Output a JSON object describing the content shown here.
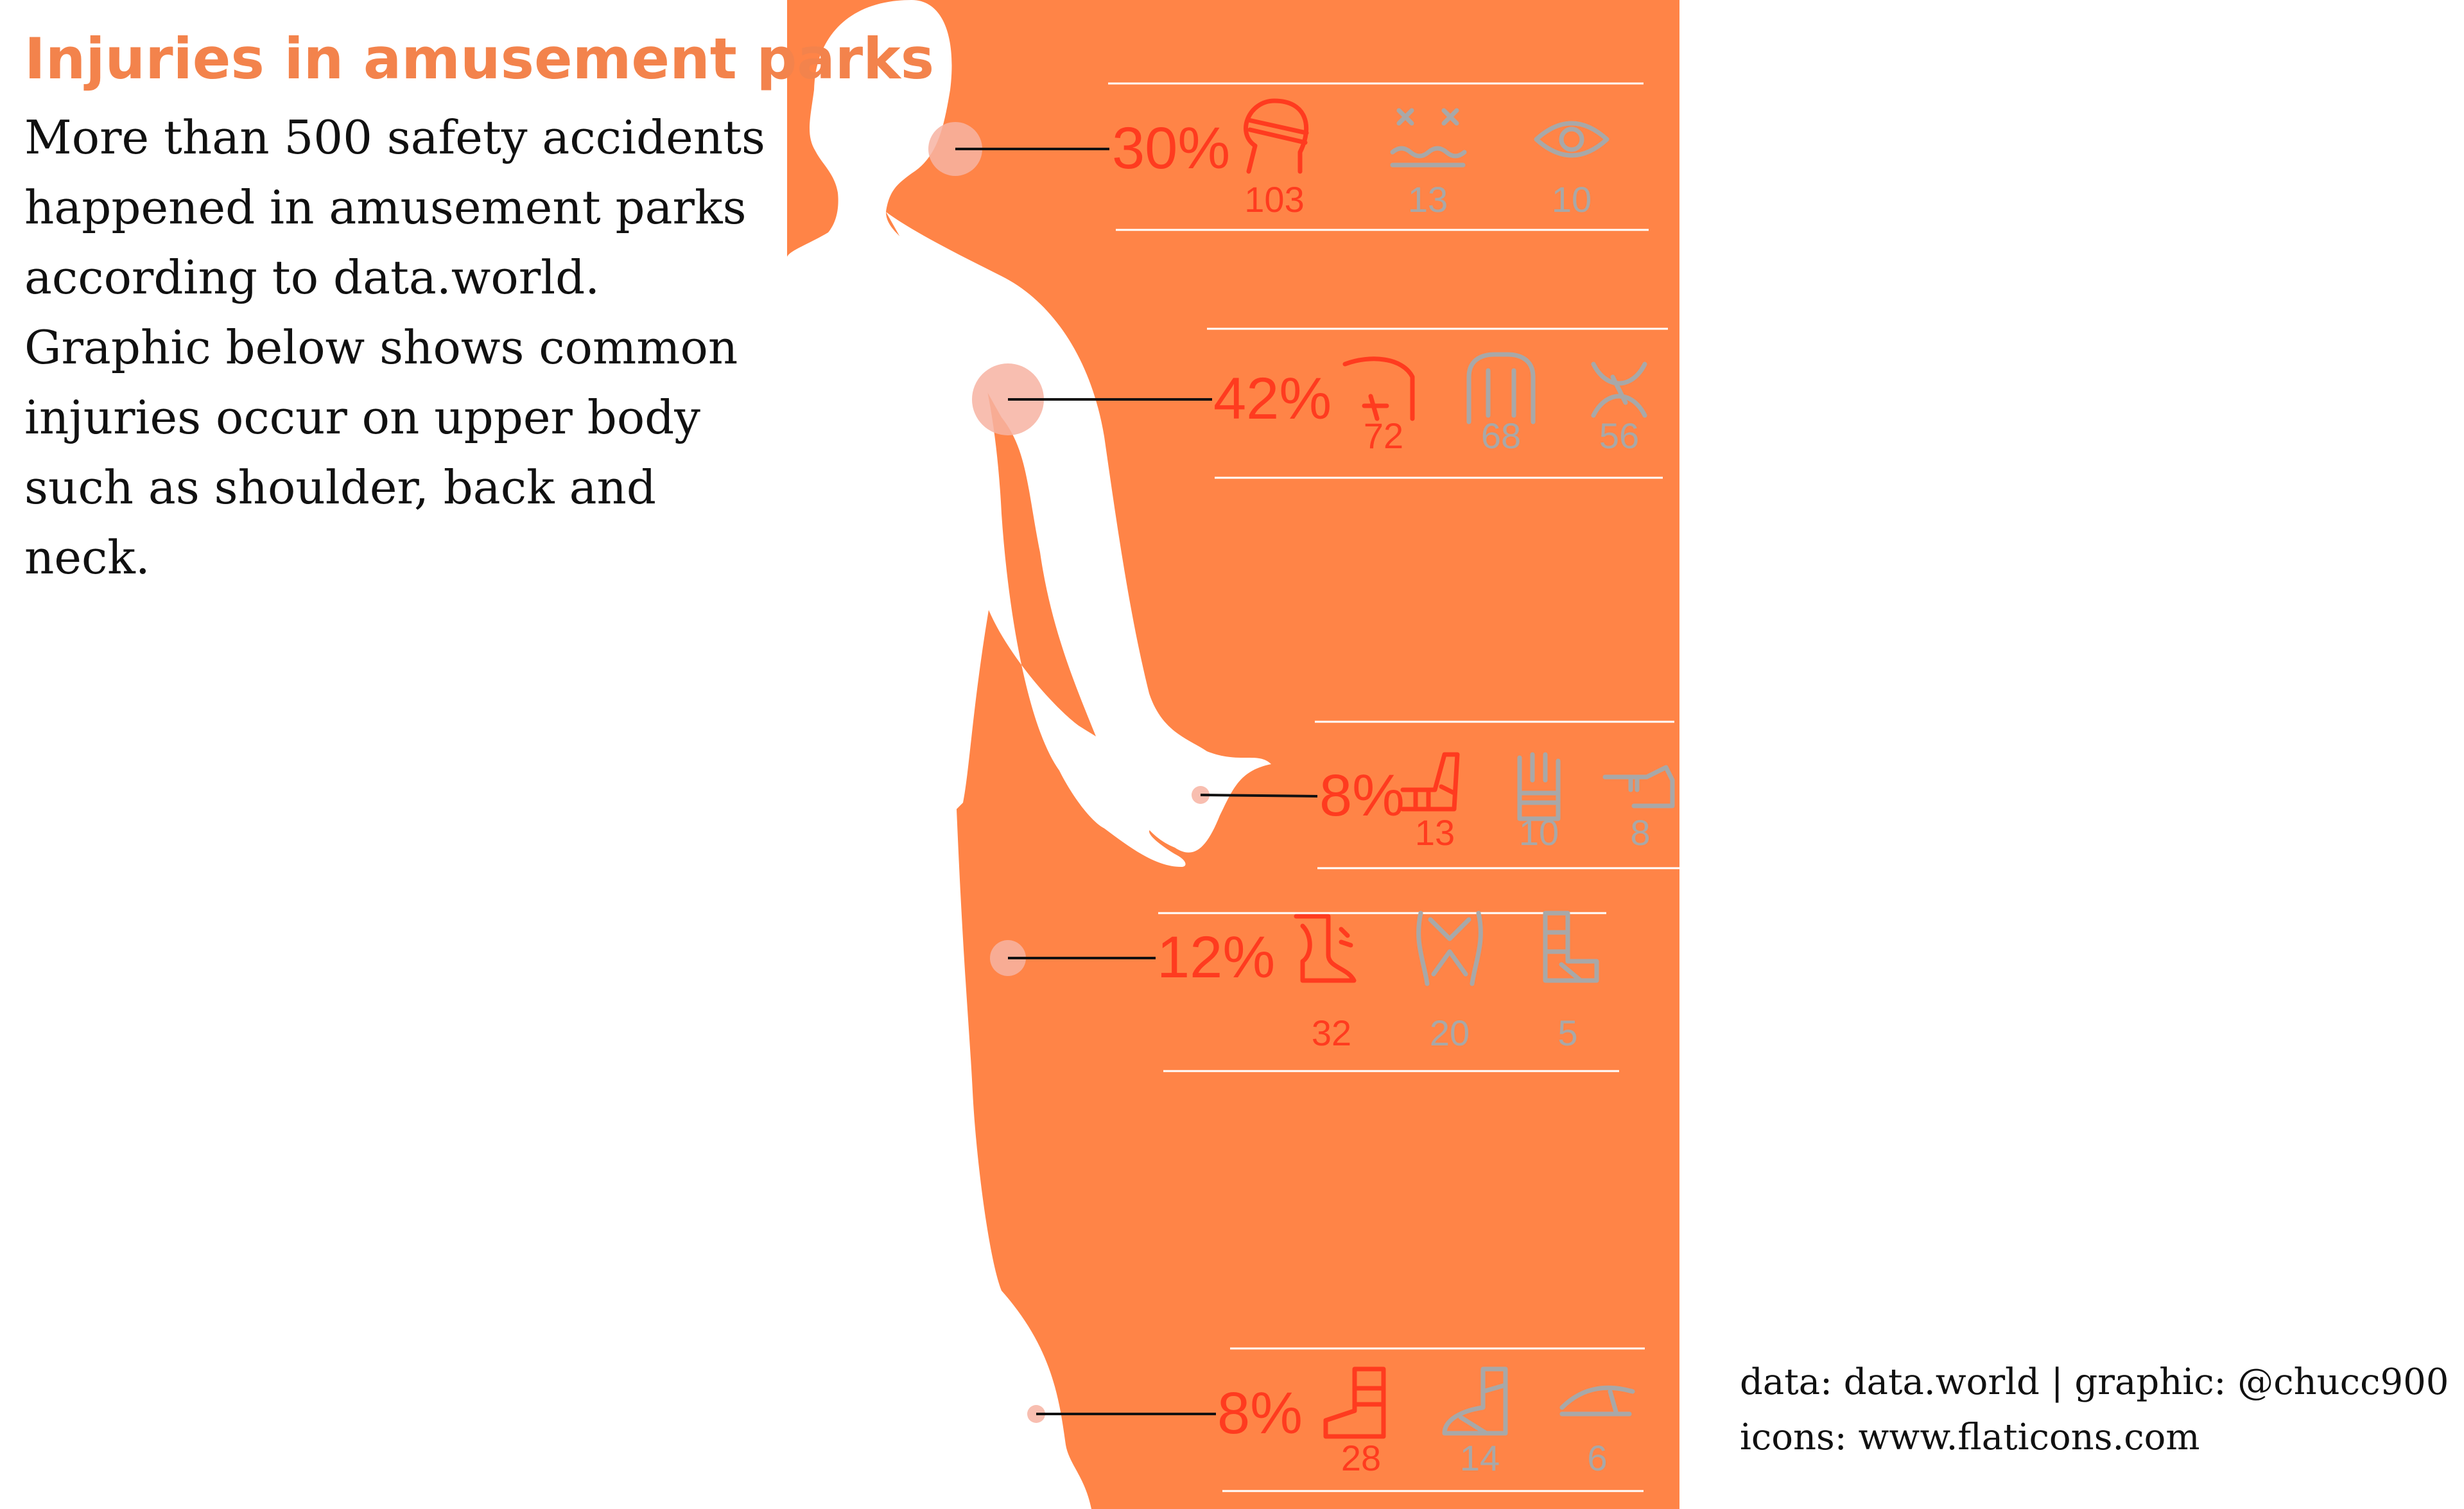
{
  "title": "Injuries in amusement parks",
  "subtitle": "More than 500 safety accidents happened in amusement parks according to data.world. Graphic below shows common injuries occur on upper body such as shoulder, back and neck.",
  "credits": {
    "line1": "data: data.world | graphic: @chucc900",
    "line2": "icons: www.flaticons.com"
  },
  "colors": {
    "panel": "#FF8447",
    "accent": "#FF3B1F",
    "muted": "#A8A8A8",
    "title": "#F3834C",
    "marker": "#F7B3A2"
  },
  "chart_data": {
    "type": "table",
    "groups": [
      {
        "percent": "30%",
        "values": [
          103,
          13,
          10
        ],
        "icons": [
          "head-bandage-icon",
          "dizzy-face-icon",
          "eye-icon"
        ]
      },
      {
        "percent": "42%",
        "values": [
          72,
          68,
          56
        ],
        "icons": [
          "shoulder-injury-icon",
          "back-torso-icon",
          "neck-pain-icon"
        ]
      },
      {
        "percent": "8%",
        "values": [
          13,
          10,
          8
        ],
        "icons": [
          "arm-cast-icon",
          "hand-bandage-icon",
          "finger-bandage-icon"
        ]
      },
      {
        "percent": "12%",
        "values": [
          32,
          20,
          5
        ],
        "icons": [
          "knee-injury-icon",
          "pelvis-icon",
          "leg-cast-icon"
        ]
      },
      {
        "percent": "8%",
        "values": [
          28,
          14,
          6
        ],
        "icons": [
          "foot-cast-icon",
          "ankle-bandage-icon",
          "toe-bandage-icon"
        ]
      }
    ]
  }
}
